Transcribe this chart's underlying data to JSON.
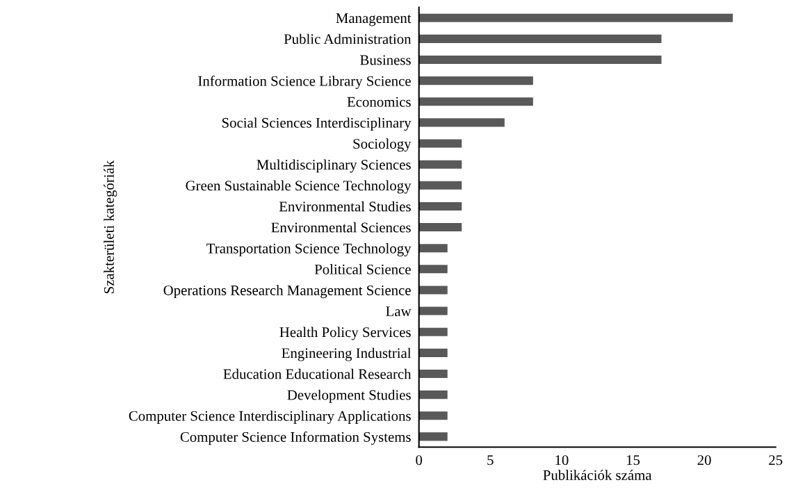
{
  "chart_data": {
    "type": "bar",
    "orientation": "horizontal",
    "xlabel": "Publikációk száma",
    "ylabel": "Szakterületi kategóriák",
    "categories": [
      "Management",
      "Public Administration",
      "Business",
      "Information Science Library Science",
      "Economics",
      "Social Sciences Interdisciplinary",
      "Sociology",
      "Multidisciplinary Sciences",
      "Green Sustainable Science Technology",
      "Environmental Studies",
      "Environmental Sciences",
      "Transportation Science Technology",
      "Political Science",
      "Operations Research Management Science",
      "Law",
      "Health Policy Services",
      "Engineering Industrial",
      "Education Educational Research",
      "Development Studies",
      "Computer Science Interdisciplinary Applications",
      "Computer Science Information Systems"
    ],
    "values": [
      22,
      17,
      17,
      8,
      8,
      6,
      3,
      3,
      3,
      3,
      3,
      2,
      2,
      2,
      2,
      2,
      2,
      2,
      2,
      2,
      2
    ],
    "color": "#595959",
    "xlim": [
      0,
      25
    ],
    "xticks": [
      0,
      5,
      10,
      15,
      20,
      25
    ],
    "grid": false,
    "legend": false
  }
}
